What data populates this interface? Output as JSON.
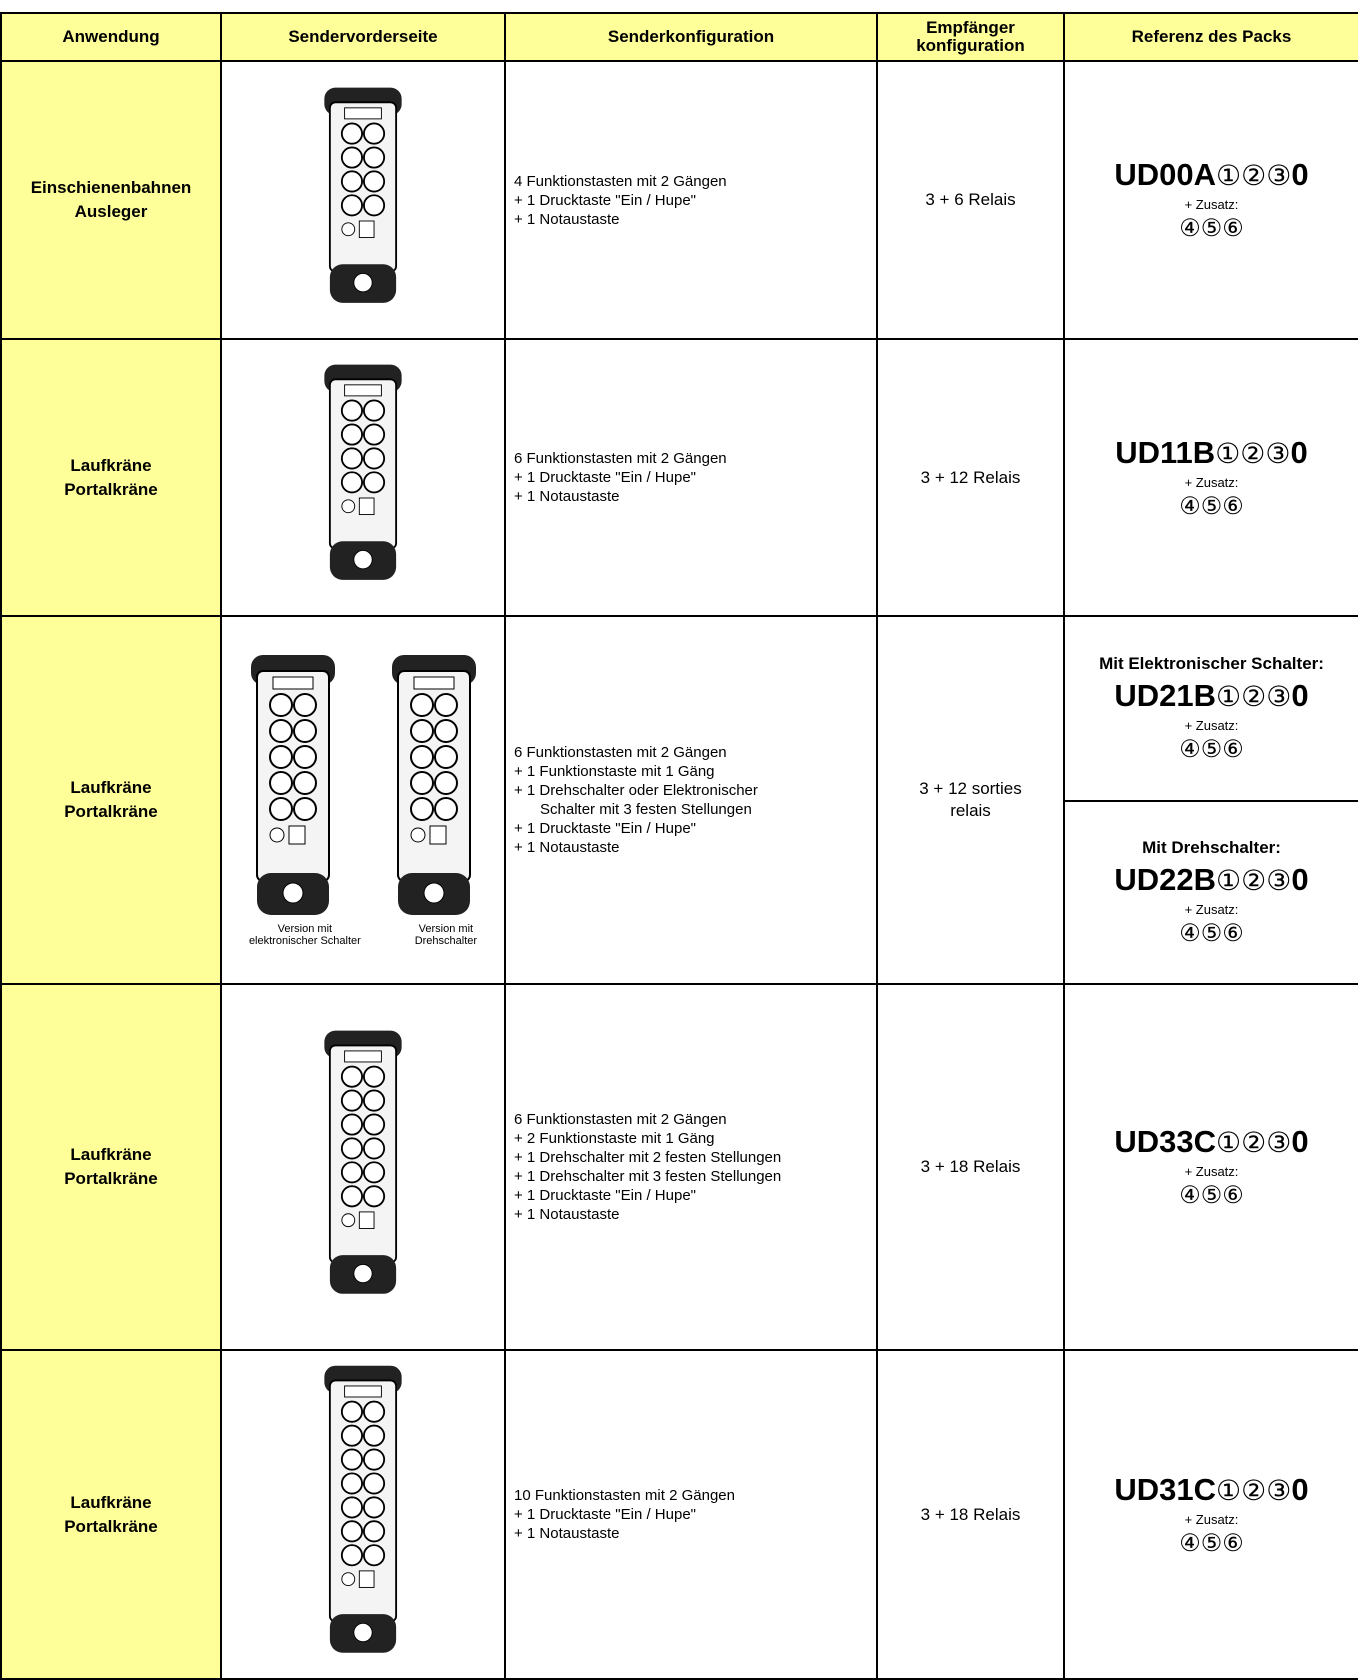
{
  "table": {
    "header": [
      "Anwendung",
      "Sendervorderseite",
      "Senderkonfiguration",
      [
        "Empfänger",
        "konfiguration"
      ],
      "Referenz des Packs"
    ],
    "rows": [
      {
        "application": [
          "Einschienenbahnen",
          "Ausleger"
        ],
        "configuration": [
          "4 Funktionstasten mit 2 Gängen",
          "+ 1 Drucktaste \"Ein / Hupe\"",
          "+ 1 Notaustaste"
        ],
        "receiver": [
          "3 + 6 Relais"
        ],
        "references": [
          {
            "code": "UD00A",
            "options": "①②③",
            "suffix": "0",
            "addon": "+ Zusatz:",
            "extras": "④⑤⑥"
          }
        ]
      },
      {
        "application": [
          "Laufkräne",
          "Portalkräne"
        ],
        "configuration": [
          "6 Funktionstasten mit 2 Gängen",
          "+ 1 Drucktaste \"Ein / Hupe\"",
          "+ 1 Notaustaste"
        ],
        "receiver": [
          "3 + 12 Relais"
        ],
        "references": [
          {
            "code": "UD11B",
            "options": "①②③",
            "suffix": "0",
            "addon": "+ Zusatz:",
            "extras": "④⑤⑥"
          }
        ]
      },
      {
        "application": [
          "Laufkräne",
          "Portalkräne"
        ],
        "captions": [
          [
            "Version mit",
            "elektronischer Schalter"
          ],
          [
            "Version mit",
            "Drehschalter"
          ]
        ],
        "configuration": [
          "6 Funktionstasten mit 2 Gängen",
          "+ 1 Funktionstaste mit 1 Gäng",
          "+ 1 Drehschalter oder Elektronischer",
          "Schalter mit 3 festen Stellungen",
          "+ 1 Drucktaste \"Ein / Hupe\"",
          "+ 1 Notaustaste"
        ],
        "receiver": [
          "3 + 12 sorties",
          "relais"
        ],
        "references": [
          {
            "label": "Mit Elektronischer Schalter:",
            "code": "UD21B",
            "options": "①②③",
            "suffix": "0",
            "addon": "+ Zusatz:",
            "extras": "④⑤⑥"
          },
          {
            "label": "Mit Drehschalter:",
            "code": "UD22B",
            "options": "①②③",
            "suffix": "0",
            "addon": "+ Zusatz:",
            "extras": "④⑤⑥"
          }
        ]
      },
      {
        "application": [
          "Laufkräne",
          "Portalkräne"
        ],
        "configuration": [
          "6 Funktionstasten mit 2 Gängen",
          "+ 2  Funktionstaste mit 1 Gäng",
          "+ 1 Drehschalter mit 2 festen Stellungen",
          "+ 1 Drehschalter mit 3 festen Stellungen",
          "+ 1 Drucktaste \"Ein / Hupe\"",
          "+ 1 Notaustaste"
        ],
        "receiver": [
          "3 + 18 Relais"
        ],
        "references": [
          {
            "code": "UD33C",
            "options": "①②③",
            "suffix": "0",
            "addon": "+ Zusatz:",
            "extras": "④⑤⑥"
          }
        ]
      },
      {
        "application": [
          "Laufkräne",
          "Portalkräne"
        ],
        "configuration": [
          "10 Funktionstasten mit 2 Gängen",
          "+ 1 Drucktaste \"Ein / Hupe\"",
          "+ 1 Notaustaste"
        ],
        "receiver": [
          "3 + 18 Relais"
        ],
        "references": [
          {
            "code": "UD31C",
            "options": "①②③",
            "suffix": "0",
            "addon": "+ Zusatz:",
            "extras": "④⑤⑥"
          }
        ]
      }
    ]
  }
}
